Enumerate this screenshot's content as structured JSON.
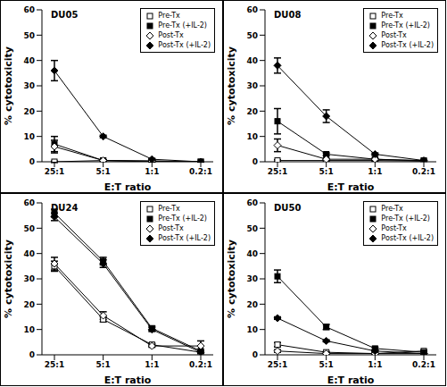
{
  "chart_data": [
    {
      "type": "line",
      "title": "DU05",
      "x_label": "E:T ratio",
      "y_label": "% cytotoxicity",
      "categories": [
        "25:1",
        "5:1",
        "1:1",
        "0.2:1"
      ],
      "ylim": [
        0,
        60
      ],
      "yticks": [
        0,
        10,
        20,
        30,
        40,
        50,
        60
      ],
      "grid": false,
      "legend": "upper right",
      "series": [
        {
          "name": "Pre-Tx",
          "color": "#000000",
          "marker": "open-square",
          "values": [
            0,
            0.5,
            0,
            0
          ],
          "errors": [
            0.3,
            0.2,
            0.1,
            0.1
          ]
        },
        {
          "name": "Pre-Tx (+IL-2)",
          "color": "#000000",
          "marker": "square",
          "values": [
            7,
            0.5,
            0.3,
            0
          ],
          "errors": [
            3,
            0.3,
            0.2,
            0.1
          ]
        },
        {
          "name": "Post-Tx",
          "color": "#000000",
          "marker": "open-diamond",
          "values": [
            6,
            0.5,
            0.3,
            0
          ],
          "errors": [
            2.5,
            0.3,
            0.2,
            0.1
          ]
        },
        {
          "name": "Post-Tx (+IL-2)",
          "color": "#000000",
          "marker": "diamond",
          "values": [
            36,
            10,
            1,
            0
          ],
          "errors": [
            4,
            0.5,
            0.3,
            0.1
          ]
        }
      ]
    },
    {
      "type": "line",
      "title": "DU08",
      "x_label": "E:T ratio",
      "y_label": "% cytotoxicity",
      "categories": [
        "25:1",
        "5:1",
        "1:1",
        "0.2:1"
      ],
      "ylim": [
        0,
        60
      ],
      "yticks": [
        0,
        10,
        20,
        30,
        40,
        50,
        60
      ],
      "grid": false,
      "legend": "upper right",
      "series": [
        {
          "name": "Pre-Tx",
          "color": "#000000",
          "marker": "open-square",
          "values": [
            0.5,
            0.5,
            0.5,
            0.3
          ],
          "errors": [
            0.3,
            0.2,
            0.2,
            0.1
          ]
        },
        {
          "name": "Pre-Tx (+IL-2)",
          "color": "#000000",
          "marker": "square",
          "values": [
            16,
            3,
            1,
            0.5
          ],
          "errors": [
            5,
            0.5,
            0.3,
            0.2
          ]
        },
        {
          "name": "Post-Tx",
          "color": "#000000",
          "marker": "open-diamond",
          "values": [
            6.5,
            1,
            1,
            0.3
          ],
          "errors": [
            2.5,
            0.3,
            0.3,
            0.1
          ]
        },
        {
          "name": "Post-Tx (+IL-2)",
          "color": "#000000",
          "marker": "diamond",
          "values": [
            38,
            18,
            3,
            0.5
          ],
          "errors": [
            3,
            2.5,
            0.5,
            0.2
          ]
        }
      ]
    },
    {
      "type": "line",
      "title": "DU24",
      "x_label": "E:T ratio",
      "y_label": "% cytotoxicity",
      "categories": [
        "25:1",
        "5:1",
        "1:1",
        "0.2:1"
      ],
      "ylim": [
        0,
        60
      ],
      "yticks": [
        0,
        10,
        20,
        30,
        40,
        50,
        60
      ],
      "grid": false,
      "legend": "upper right",
      "series": [
        {
          "name": "Pre-Tx",
          "color": "#000000",
          "marker": "open-square",
          "values": [
            35,
            14,
            4,
            1
          ],
          "errors": [
            2,
            1,
            0.5,
            0.3
          ]
        },
        {
          "name": "Pre-Tx (+IL-2)",
          "color": "#000000",
          "marker": "square",
          "values": [
            56,
            37,
            10.5,
            1.5
          ],
          "errors": [
            1.5,
            1.5,
            0.8,
            0.3
          ]
        },
        {
          "name": "Post-Tx",
          "color": "#000000",
          "marker": "open-diamond",
          "values": [
            36,
            15.5,
            3.5,
            3.5
          ],
          "errors": [
            2.5,
            1.5,
            0.5,
            2
          ]
        },
        {
          "name": "Post-Tx (+IL-2)",
          "color": "#000000",
          "marker": "diamond",
          "values": [
            54.5,
            36,
            10,
            1
          ],
          "errors": [
            1.5,
            1.5,
            0.8,
            0.3
          ]
        }
      ]
    },
    {
      "type": "line",
      "title": "DU50",
      "x_label": "E:T ratio",
      "y_label": "% cytotoxicity",
      "categories": [
        "25:1",
        "5:1",
        "1:1",
        "0.2:1"
      ],
      "ylim": [
        0,
        60
      ],
      "yticks": [
        0,
        10,
        20,
        30,
        40,
        50,
        60
      ],
      "grid": false,
      "legend": "upper right",
      "series": [
        {
          "name": "Pre-Tx",
          "color": "#000000",
          "marker": "open-square",
          "values": [
            4,
            1,
            0.5,
            1.5
          ],
          "errors": [
            0.8,
            0.3,
            0.2,
            0.3
          ]
        },
        {
          "name": "Pre-Tx (+IL-2)",
          "color": "#000000",
          "marker": "square",
          "values": [
            31,
            11,
            2.5,
            1
          ],
          "errors": [
            2.5,
            1,
            0.5,
            0.3
          ]
        },
        {
          "name": "Post-Tx",
          "color": "#000000",
          "marker": "open-diamond",
          "values": [
            1.5,
            0.5,
            0.5,
            0.5
          ],
          "errors": [
            0.5,
            0.2,
            0.2,
            0.2
          ]
        },
        {
          "name": "Post-Tx (+IL-2)",
          "color": "#000000",
          "marker": "diamond",
          "values": [
            14.5,
            5.5,
            1.5,
            0.5
          ],
          "errors": [
            0.5,
            0.4,
            0.3,
            0.2
          ]
        }
      ]
    }
  ]
}
